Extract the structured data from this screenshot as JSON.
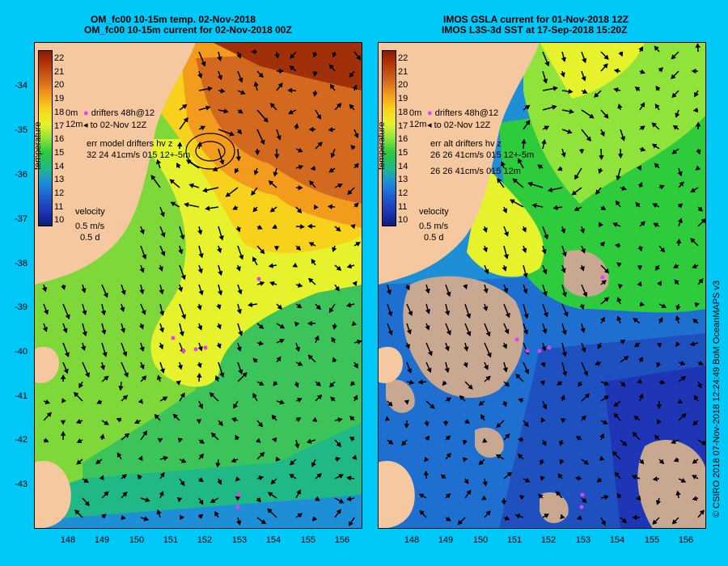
{
  "left_panel": {
    "title_line1": "OM_fc00 10-15m temp. 02-Nov-2018",
    "title_line2": "OM_fc00 10-15m current for 02-Nov-2018 00Z",
    "legend": {
      "drifters_label": "drifters 48h@12",
      "drifters_sub": "to 02-Nov 12Z",
      "depth_top": "0m",
      "depth_bottom": "12m",
      "err_line1": "err model drifters hv z",
      "err_line2": "32 24 41cm/s 015 12+-5m"
    }
  },
  "right_panel": {
    "title_line1": "IMOS GSLA current for 01-Nov-2018 12Z",
    "title_line2": "IMOS L3S-3d SST at 17-Sep-2018 15:20Z",
    "legend": {
      "drifters_label": "drifters 48h@12",
      "drifters_sub": "to 02-Nov 12Z",
      "depth_top": "0m",
      "depth_bottom": "12m",
      "err_line1": "err alt drifters hv z",
      "err_line2": "26 26 41cm/s 015 12+-5m",
      "err_line3": "26 26 41cm/s 015 12m"
    }
  },
  "colorbar": {
    "ticks": [
      "22",
      "21",
      "20",
      "19",
      "18",
      "17",
      "16",
      "15",
      "14",
      "13",
      "12",
      "11",
      "10"
    ],
    "label": "temperature",
    "colors": [
      "#8b1a00",
      "#b5390a",
      "#d2691e",
      "#f29b1d",
      "#f7d11b",
      "#e6f32c",
      "#8fe33a",
      "#2ecc3d",
      "#1fb886",
      "#1e8fd6",
      "#1e5fd0",
      "#1e35b5",
      "#0a1e7a"
    ]
  },
  "velocity_scale": {
    "label": "velocity",
    "speed": "0.5 m/s",
    "time": "0.5 d"
  },
  "axes": {
    "lat_ticks": [
      "-34",
      "-35",
      "-36",
      "-37",
      "-38",
      "-39",
      "-40",
      "-41",
      "-42",
      "-43"
    ],
    "lon_ticks": [
      "148",
      "149",
      "150",
      "151",
      "152",
      "153",
      "154",
      "155",
      "156"
    ]
  },
  "credit": "© CSIRO 2018   07-Nov-2018 12:24:49 BoM OceanMAPS v3",
  "colors": {
    "background": "#00c8f8",
    "land": "#f5c8a0",
    "drifter": "#e040f0"
  }
}
